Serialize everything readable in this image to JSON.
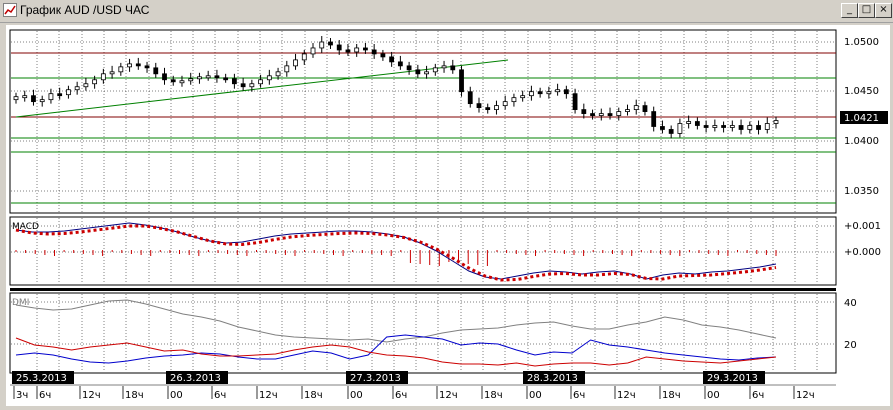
{
  "window": {
    "title": "График AUD /USD  ЧАС",
    "minimize_glyph": "_",
    "maximize_glyph": "□",
    "close_glyph": "×"
  },
  "price_panel": {
    "y_ticks": [
      "1.0500",
      "1.0450",
      "1.0400",
      "1.0350"
    ],
    "current_price": "1.0421",
    "colors": {
      "bull_body": "#ffffff",
      "bear_body": "#000000",
      "trendline": "#008000",
      "resistance": "#800000",
      "support": "#008000",
      "price_marker_bg": "#000000"
    }
  },
  "macd_panel": {
    "label": "MACD",
    "y_ticks": [
      "+0.001",
      "+0.000"
    ],
    "colors": {
      "macd_line": "#000080",
      "signal_dots": "#cc0000",
      "histogram": "#cc0000"
    }
  },
  "dmi_panel": {
    "label": "DMI",
    "y_ticks": [
      "40",
      "20"
    ],
    "colors": {
      "adx": "#808080",
      "plus_di": "#0000cc",
      "minus_di": "#cc0000"
    }
  },
  "x_axis": {
    "time_labels": [
      "3ч",
      "6ч",
      "12ч",
      "18ч",
      "00",
      "6ч",
      "12ч",
      "18ч",
      "00",
      "6ч",
      "12ч",
      "18ч",
      "00",
      "6ч",
      "12ч",
      "18ч",
      "00",
      "6ч",
      "12ч"
    ],
    "date_labels": [
      "25.3.2013",
      "26.3.2013",
      "27.3.2013",
      "28.3.2013",
      "29.3.2013"
    ]
  }
}
